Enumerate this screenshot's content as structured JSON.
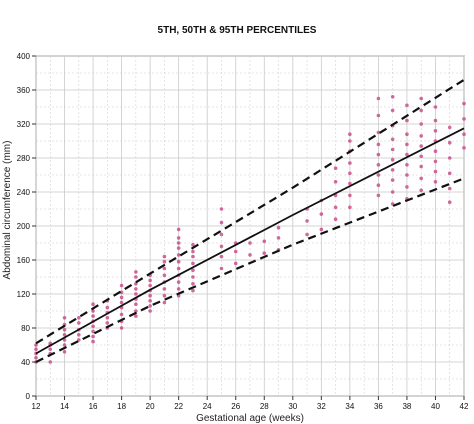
{
  "chart_data": {
    "type": "scatter",
    "title": "5TH, 50TH & 95TH PERCENTILES",
    "xlabel": "Gestational age (weeks)",
    "ylabel": "Abdominal circumference (mm)",
    "xlim": [
      12,
      42
    ],
    "ylim": [
      0,
      400
    ],
    "xticks": [
      12,
      14,
      16,
      18,
      20,
      22,
      24,
      26,
      28,
      30,
      32,
      34,
      36,
      38,
      40,
      42
    ],
    "yticks": [
      0,
      40,
      80,
      120,
      160,
      200,
      240,
      280,
      320,
      360,
      400
    ],
    "grid": true,
    "colors": {
      "points": "#c8508c",
      "lines": "#111111",
      "grid": "#c9c9c9"
    },
    "percentile_lines": [
      {
        "percentile": 95,
        "style": "dashed",
        "points": [
          [
            12,
            62
          ],
          [
            20,
            144
          ],
          [
            30,
            245
          ],
          [
            42,
            372
          ]
        ]
      },
      {
        "percentile": 50,
        "style": "solid",
        "points": [
          [
            12,
            50
          ],
          [
            20,
            125
          ],
          [
            30,
            213
          ],
          [
            42,
            315
          ]
        ]
      },
      {
        "percentile": 5,
        "style": "dashed",
        "points": [
          [
            12,
            40
          ],
          [
            20,
            106
          ],
          [
            30,
            178
          ],
          [
            42,
            256
          ]
        ]
      }
    ],
    "scatter": [
      {
        "x": 12,
        "ys": [
          40,
          45,
          50,
          55,
          60
        ]
      },
      {
        "x": 13,
        "ys": [
          40,
          50,
          55,
          60,
          62
        ]
      },
      {
        "x": 14,
        "ys": [
          52,
          60,
          66,
          72,
          78,
          84,
          92
        ]
      },
      {
        "x": 15,
        "ys": [
          66,
          72,
          78,
          86,
          92
        ]
      },
      {
        "x": 16,
        "ys": [
          64,
          70,
          76,
          82,
          88,
          94,
          100,
          108
        ]
      },
      {
        "x": 17,
        "ys": [
          80,
          86,
          92,
          98,
          104,
          112
        ]
      },
      {
        "x": 18,
        "ys": [
          80,
          88,
          96,
          104,
          110,
          116,
          122,
          130
        ]
      },
      {
        "x": 19,
        "ys": [
          94,
          100,
          108,
          114,
          120,
          126,
          132,
          140,
          146
        ]
      },
      {
        "x": 20,
        "ys": [
          100,
          106,
          112,
          118,
          124,
          130,
          136,
          142
        ]
      },
      {
        "x": 21,
        "ys": [
          110,
          118,
          126,
          134,
          142,
          150,
          158,
          164
        ]
      },
      {
        "x": 22,
        "ys": [
          118,
          126,
          134,
          142,
          150,
          158,
          166,
          174,
          180,
          186,
          196
        ]
      },
      {
        "x": 23,
        "ys": [
          124,
          132,
          140,
          148,
          156,
          164,
          170,
          178
        ]
      },
      {
        "x": 25,
        "ys": [
          150,
          164,
          176,
          190,
          204,
          220
        ]
      },
      {
        "x": 26,
        "ys": [
          156,
          170,
          180
        ]
      },
      {
        "x": 27,
        "ys": [
          166,
          180
        ]
      },
      {
        "x": 28,
        "ys": [
          168,
          182
        ]
      },
      {
        "x": 29,
        "ys": [
          172,
          186,
          198
        ]
      },
      {
        "x": 31,
        "ys": [
          190,
          206,
          220
        ]
      },
      {
        "x": 32,
        "ys": [
          196,
          214,
          230
        ]
      },
      {
        "x": 33,
        "ys": [
          208,
          222,
          236,
          252,
          268
        ]
      },
      {
        "x": 34,
        "ys": [
          222,
          236,
          250,
          262,
          274,
          288,
          300,
          308
        ]
      },
      {
        "x": 36,
        "ys": [
          236,
          248,
          260,
          272,
          284,
          296,
          310,
          330,
          350
        ]
      },
      {
        "x": 37,
        "ys": [
          226,
          240,
          254,
          266,
          278,
          290,
          302,
          318,
          336,
          352
        ]
      },
      {
        "x": 38,
        "ys": [
          232,
          246,
          260,
          272,
          284,
          296,
          308,
          324,
          342
        ]
      },
      {
        "x": 39,
        "ys": [
          242,
          256,
          270,
          282,
          294,
          306,
          320,
          336,
          350
        ]
      },
      {
        "x": 40,
        "ys": [
          252,
          264,
          276,
          288,
          300,
          312,
          324,
          340
        ]
      },
      {
        "x": 41,
        "ys": [
          228,
          244,
          262,
          280,
          298,
          316
        ]
      },
      {
        "x": 42,
        "ys": [
          292,
          308,
          326,
          344
        ]
      }
    ]
  }
}
